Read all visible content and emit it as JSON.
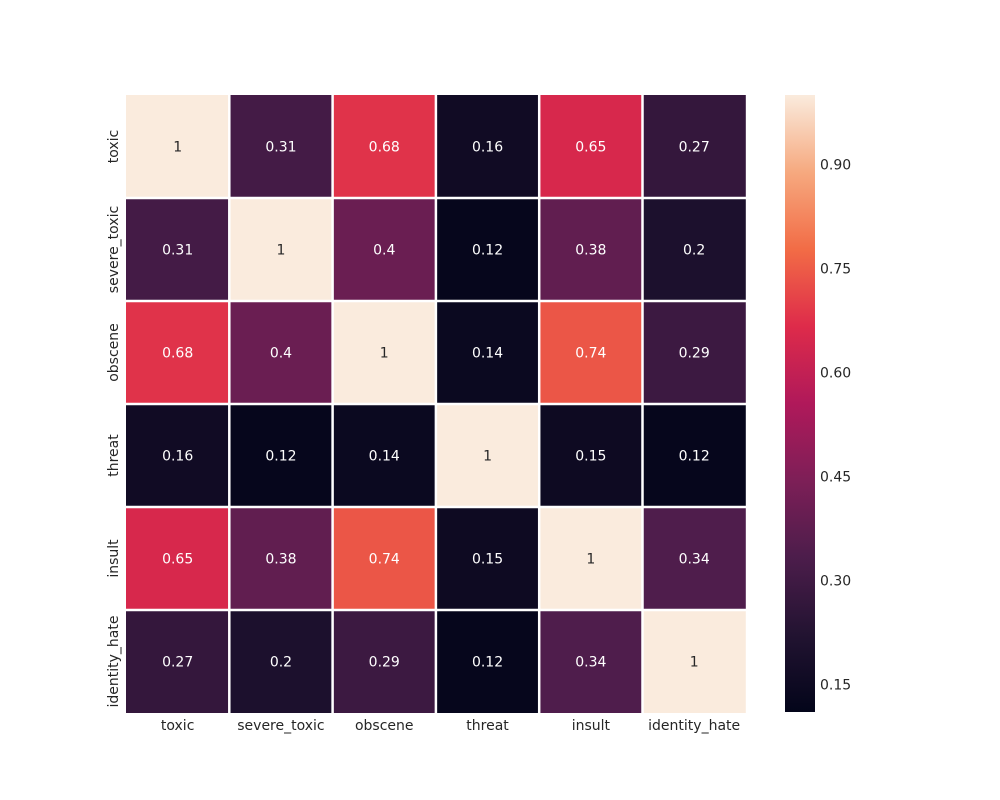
{
  "chart_data": {
    "type": "heatmap",
    "title": "",
    "xlabel": "",
    "ylabel": "",
    "x_categories": [
      "toxic",
      "severe_toxic",
      "obscene",
      "threat",
      "insult",
      "identity_hate"
    ],
    "y_categories": [
      "toxic",
      "severe_toxic",
      "obscene",
      "threat",
      "insult",
      "identity_hate"
    ],
    "values": [
      [
        1,
        0.31,
        0.68,
        0.16,
        0.65,
        0.27
      ],
      [
        0.31,
        1,
        0.4,
        0.12,
        0.38,
        0.2
      ],
      [
        0.68,
        0.4,
        1,
        0.14,
        0.74,
        0.29
      ],
      [
        0.16,
        0.12,
        0.14,
        1,
        0.15,
        0.12
      ],
      [
        0.65,
        0.38,
        0.74,
        0.15,
        1,
        0.34
      ],
      [
        0.27,
        0.2,
        0.29,
        0.12,
        0.34,
        1
      ]
    ],
    "annotations": true,
    "colormap": "rocket",
    "colorbar": {
      "range": [
        0.11,
        1.0
      ],
      "ticks": [
        0.15,
        0.3,
        0.45,
        0.6,
        0.75,
        0.9
      ],
      "tick_labels": [
        "0.15",
        "0.30",
        "0.45",
        "0.60",
        "0.75",
        "0.90"
      ]
    },
    "cell_gap_color": "#ffffff",
    "grid": false,
    "legend": "colorbar-right"
  }
}
